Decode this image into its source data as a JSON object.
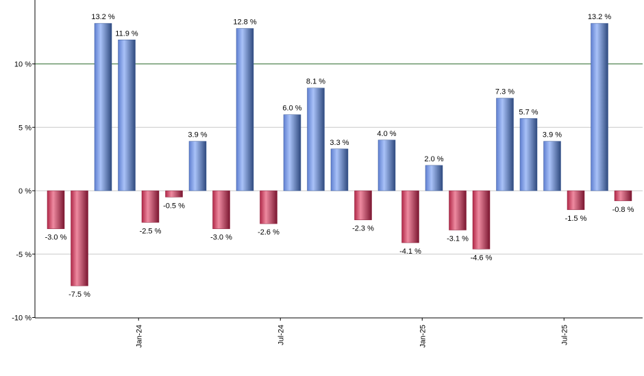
{
  "chart_data": {
    "type": "bar",
    "title": "",
    "xlabel": "",
    "ylabel": "",
    "ylim": [
      -10,
      14
    ],
    "y_ticks": [
      {
        "value": -10,
        "label": "-10 %"
      },
      {
        "value": -5,
        "label": "-5 %"
      },
      {
        "value": 0,
        "label": "0 %"
      },
      {
        "value": 5,
        "label": "5 %"
      },
      {
        "value": 10,
        "label": "10 %"
      }
    ],
    "x_ticks": [
      {
        "index": 3.5,
        "label": "Jan-24"
      },
      {
        "index": 9.5,
        "label": "Jul-24"
      },
      {
        "index": 15.5,
        "label": "Jan-25"
      },
      {
        "index": 21.5,
        "label": "Jul-25"
      }
    ],
    "reference_line": {
      "value": 10,
      "color": "#2e6b2e"
    },
    "colors": {
      "positive": "#7f9ce0",
      "negative": "#c84060",
      "grid": "#c8c8c8"
    },
    "values": [
      -3.0,
      -7.5,
      13.2,
      11.9,
      -2.5,
      -0.5,
      3.9,
      -3.0,
      12.8,
      -2.6,
      6.0,
      8.1,
      3.3,
      -2.3,
      4.0,
      -4.1,
      2.0,
      -3.1,
      -4.6,
      7.3,
      5.7,
      3.9,
      -1.5,
      13.2,
      -0.8
    ],
    "labels": [
      "-3.0 %",
      "-7.5 %",
      "13.2 %",
      "11.9 %",
      "-2.5 %",
      "-0.5 %",
      "3.9 %",
      "-3.0 %",
      "12.8 %",
      "-2.6 %",
      "6.0 %",
      "8.1 %",
      "3.3 %",
      "-2.3 %",
      "4.0 %",
      "-4.1 %",
      "2.0 %",
      "-3.1 %",
      "-4.6 %",
      "7.3 %",
      "5.7 %",
      "3.9 %",
      "-1.5 %",
      "13.2 %",
      "-0.8 %"
    ]
  }
}
